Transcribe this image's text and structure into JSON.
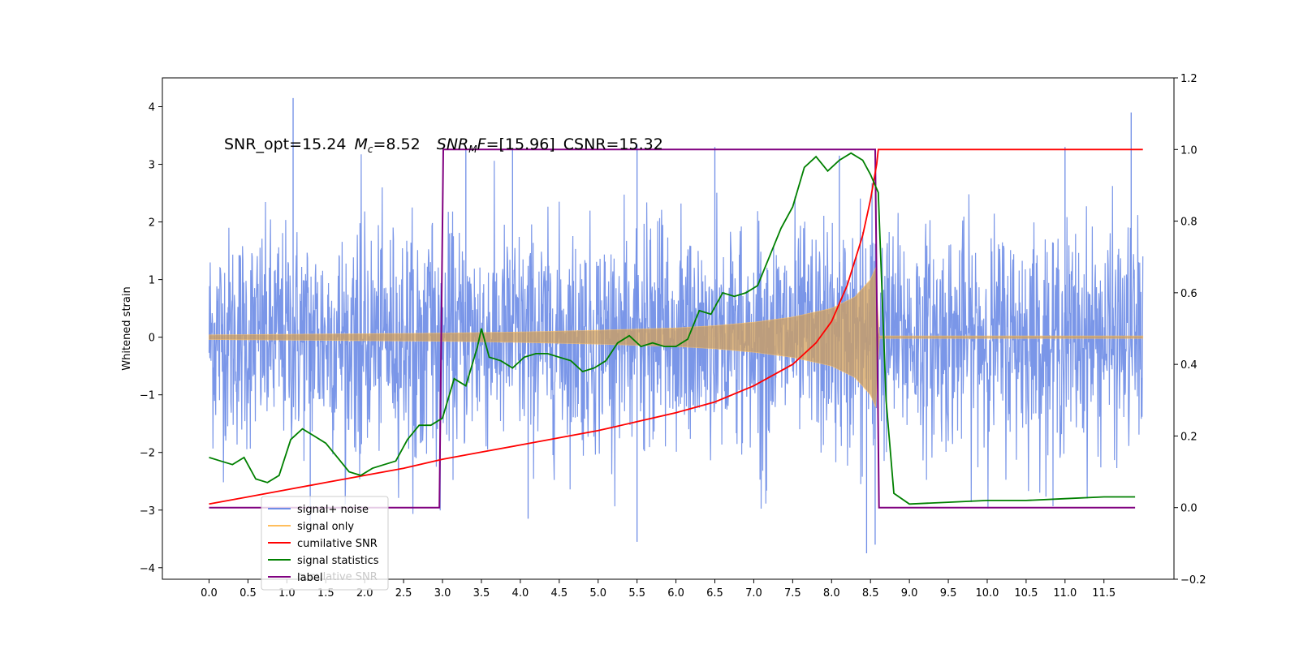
{
  "chart_data": {
    "type": "line",
    "title": {
      "snr_opt": "SNR_opt=15.24",
      "mc_symbol": "M",
      "mc_sub": "c",
      "mc_value": "=8.52",
      "snr_mf_symbol": "SNR",
      "snr_mf_sub": "M",
      "snr_mf_letter": "F",
      "snr_mf_value": "=[15.96]",
      "csnr": "CSNR=15.32"
    },
    "ylabel": "Whitened strain",
    "xlim": [
      -0.6,
      12.4
    ],
    "ylim_left": [
      -4.2,
      4.5
    ],
    "ylim_right": [
      -0.2,
      1.2
    ],
    "x_ticks": [
      "0.0",
      "0.5",
      "1.0",
      "1.5",
      "2.0",
      "2.5",
      "3.0",
      "3.5",
      "4.0",
      "4.5",
      "5.0",
      "5.5",
      "6.0",
      "6.5",
      "7.0",
      "7.5",
      "8.0",
      "8.5",
      "9.0",
      "9.5",
      "10.0",
      "10.5",
      "11.0",
      "11.5"
    ],
    "x_tick_values": [
      0,
      0.5,
      1,
      1.5,
      2,
      2.5,
      3,
      3.5,
      4,
      4.5,
      5,
      5.5,
      6,
      6.5,
      7,
      7.5,
      8,
      8.5,
      9,
      9.5,
      10,
      10.5,
      11,
      11.5
    ],
    "y_left_ticks": [
      "4",
      "3",
      "2",
      "1",
      "0",
      "−1",
      "−2",
      "−3",
      "−4"
    ],
    "y_left_tick_values": [
      4,
      3,
      2,
      1,
      0,
      -1,
      -2,
      -3,
      -4
    ],
    "y_right_ticks": [
      "1.2",
      "1.0",
      "0.8",
      "0.6",
      "0.4",
      "0.2",
      "0.0",
      "−0.2"
    ],
    "y_right_tick_values": [
      1.2,
      1.0,
      0.8,
      0.6,
      0.4,
      0.2,
      0.0,
      -0.2
    ],
    "legend": {
      "position": "lower-left",
      "items": [
        {
          "label": "signal+ noise",
          "color": "#6f8de6"
        },
        {
          "label": "signal only",
          "color": "#ffbe5c"
        },
        {
          "label": "cumilative SNR",
          "color": "#ff0000"
        },
        {
          "label": "signal statistics",
          "color": "#008000"
        },
        {
          "label": "label",
          "color": "#800080"
        }
      ],
      "ghost_text": "cumilative SNR"
    },
    "series": [
      {
        "name": "signal+ noise",
        "axis": "left",
        "x_range": [
          0,
          12.0
        ],
        "amplitude_envelope": {
          "x": [
            0,
            3,
            8.6,
            12
          ],
          "y": [
            1.5,
            1.5,
            1.5,
            1.5
          ]
        },
        "extremes": {
          "max": 4.15,
          "min": -3.75
        }
      },
      {
        "name": "signal only",
        "axis": "left",
        "envelope": {
          "x": [
            0,
            1,
            2,
            3,
            4,
            5,
            6,
            6.5,
            7,
            7.5,
            8,
            8.3,
            8.5,
            8.58,
            8.6,
            12
          ],
          "y": [
            0.04,
            0.05,
            0.06,
            0.07,
            0.09,
            0.12,
            0.16,
            0.2,
            0.26,
            0.35,
            0.5,
            0.7,
            1.0,
            1.25,
            0.02,
            0.02
          ]
        }
      },
      {
        "name": "cumilative SNR",
        "axis": "right",
        "x": [
          0,
          0.5,
          1,
          1.5,
          2,
          2.5,
          3,
          3.5,
          4,
          4.5,
          5,
          5.5,
          6,
          6.5,
          7,
          7.5,
          7.8,
          8.0,
          8.2,
          8.4,
          8.5,
          8.58,
          8.6,
          9,
          10,
          11,
          12
        ],
        "values": [
          0.01,
          0.03,
          0.05,
          0.07,
          0.09,
          0.11,
          0.135,
          0.155,
          0.175,
          0.195,
          0.215,
          0.24,
          0.265,
          0.295,
          0.34,
          0.4,
          0.46,
          0.52,
          0.62,
          0.76,
          0.86,
          0.96,
          1.0,
          1.0,
          1.0,
          1.0,
          1.0
        ]
      },
      {
        "name": "signal statistics",
        "axis": "right",
        "x": [
          0,
          0.15,
          0.3,
          0.45,
          0.6,
          0.75,
          0.9,
          1.05,
          1.2,
          1.35,
          1.5,
          1.65,
          1.8,
          1.95,
          2.1,
          2.25,
          2.4,
          2.55,
          2.7,
          2.85,
          3.0,
          3.15,
          3.3,
          3.45,
          3.5,
          3.6,
          3.75,
          3.9,
          4.05,
          4.2,
          4.35,
          4.5,
          4.65,
          4.8,
          4.95,
          5.1,
          5.25,
          5.4,
          5.55,
          5.7,
          5.85,
          6.0,
          6.15,
          6.3,
          6.45,
          6.6,
          6.75,
          6.9,
          7.05,
          7.2,
          7.35,
          7.5,
          7.65,
          7.8,
          7.95,
          8.1,
          8.25,
          8.4,
          8.5,
          8.6,
          8.7,
          8.8,
          9.0,
          9.5,
          10.0,
          10.5,
          11.0,
          11.5,
          11.9
        ],
        "values": [
          0.14,
          0.13,
          0.12,
          0.14,
          0.08,
          0.07,
          0.09,
          0.19,
          0.22,
          0.2,
          0.18,
          0.14,
          0.1,
          0.09,
          0.11,
          0.12,
          0.13,
          0.19,
          0.23,
          0.23,
          0.25,
          0.36,
          0.34,
          0.45,
          0.5,
          0.42,
          0.41,
          0.39,
          0.42,
          0.43,
          0.43,
          0.42,
          0.41,
          0.38,
          0.39,
          0.41,
          0.46,
          0.48,
          0.45,
          0.46,
          0.45,
          0.45,
          0.47,
          0.55,
          0.54,
          0.6,
          0.59,
          0.6,
          0.62,
          0.7,
          0.78,
          0.84,
          0.95,
          0.98,
          0.94,
          0.97,
          0.99,
          0.97,
          0.93,
          0.88,
          0.3,
          0.04,
          0.01,
          0.015,
          0.02,
          0.02,
          0.025,
          0.03,
          0.03
        ]
      },
      {
        "name": "label",
        "axis": "right",
        "x": [
          0,
          2.96,
          3.01,
          8.56,
          8.61,
          11.9
        ],
        "values": [
          0,
          0,
          1,
          1,
          0,
          0
        ]
      }
    ]
  }
}
